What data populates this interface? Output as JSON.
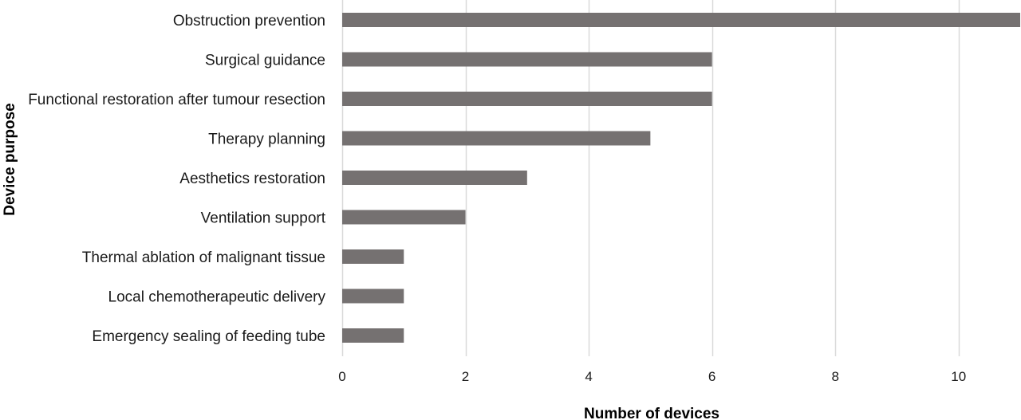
{
  "chart_data": {
    "type": "bar",
    "orientation": "horizontal",
    "categories": [
      "Obstruction prevention",
      "Surgical guidance",
      "Functional restoration after tumour resection",
      "Therapy planning",
      "Aesthetics restoration",
      "Ventilation support",
      "Thermal ablation of malignant tissue",
      "Local chemotherapeutic delivery",
      "Emergency sealing of feeding tube"
    ],
    "values": [
      11,
      6,
      6,
      5,
      3,
      2,
      1,
      1,
      1
    ],
    "xlabel": "Number of devices",
    "ylabel": "Device purpose",
    "xlim": [
      0,
      11
    ],
    "xticks": [
      0,
      2,
      4,
      6,
      8,
      10
    ],
    "xtick_labels": [
      "0",
      "2",
      "4",
      "6",
      "8",
      "10"
    ],
    "grid": "vertical",
    "legend": "none",
    "colors": {
      "bar": "#757171",
      "grid": "#d9d9d9"
    }
  }
}
